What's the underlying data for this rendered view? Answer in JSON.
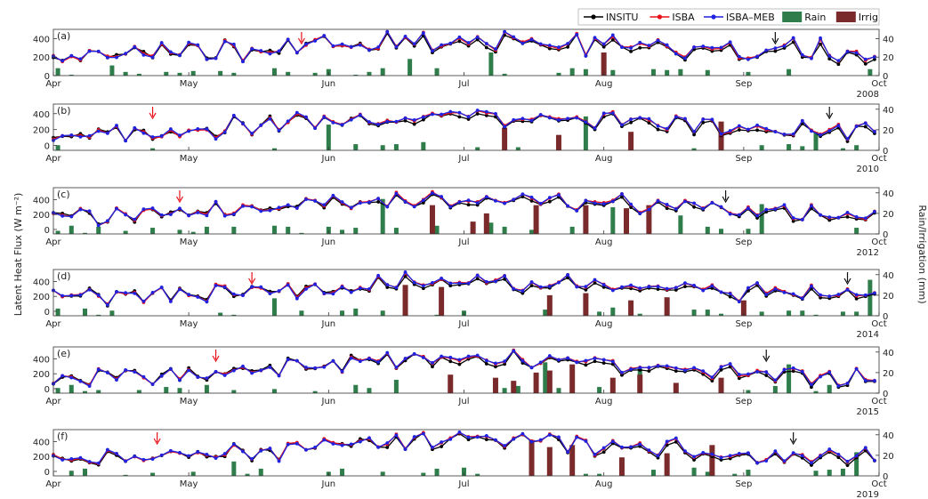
{
  "figure": {
    "ylabel_left": "Latent Heat Flux (W m⁻²)",
    "ylabel_right": "Rain/Irrigation (mm)"
  },
  "legend": [
    {
      "label": "INSITU",
      "kind": "line",
      "color": "#000000"
    },
    {
      "label": "ISBA",
      "kind": "line",
      "color": "#e8111a"
    },
    {
      "label": "ISBA–MEB",
      "kind": "line",
      "color": "#1f22e0"
    },
    {
      "label": "Rain",
      "kind": "bar",
      "color": "#2e7d4a"
    },
    {
      "label": "Irrig",
      "kind": "bar",
      "color": "#7a2a2a"
    }
  ],
  "chart_data": [
    {
      "type": "line",
      "panel": "(a)",
      "year": "2008",
      "seed": 11,
      "base": 220,
      "summer": 140,
      "ylim": [
        0,
        500
      ],
      "yticks": [
        0,
        200,
        400
      ],
      "rain_ylim": [
        0,
        50
      ],
      "rain_yticks": [
        0,
        20,
        40
      ],
      "months": [
        "Apr",
        "May",
        "Jun",
        "Jul",
        "Aug",
        "Sep",
        "Oct"
      ],
      "red_arrow_day": 55,
      "black_arrow_day": 160,
      "irrig_days": [
        122
      ],
      "irrig_values": [
        25
      ]
    },
    {
      "type": "line",
      "panel": "(b)",
      "year": "2010",
      "seed": 22,
      "base": 170,
      "summer": 170,
      "ylim": [
        -60,
        520
      ],
      "yticks": [
        0,
        200,
        400
      ],
      "rain_ylim": [
        0,
        45
      ],
      "rain_yticks": [
        0,
        20,
        40
      ],
      "months": [
        "Apr",
        "May",
        "Jun",
        "Jul",
        "Aug",
        "Sep",
        "Oct"
      ],
      "red_arrow_day": 22,
      "black_arrow_day": 172,
      "irrig_days": [
        100,
        112,
        128,
        148
      ],
      "irrig_values": [
        22,
        15,
        18,
        28
      ]
    },
    {
      "type": "line",
      "panel": "(c)",
      "year": "2012",
      "seed": 33,
      "base": 170,
      "summer": 220,
      "ylim": [
        -60,
        560
      ],
      "yticks": [
        0,
        200,
        400
      ],
      "rain_ylim": [
        0,
        45
      ],
      "rain_yticks": [
        0,
        20,
        40
      ],
      "months": [
        "Apr",
        "May",
        "Jun",
        "Jul",
        "Aug",
        "Sep",
        "Oct"
      ],
      "red_arrow_day": 28,
      "black_arrow_day": 149,
      "irrig_days": [
        84,
        93,
        96,
        107,
        118,
        127,
        132
      ],
      "irrig_values": [
        28,
        12,
        20,
        28,
        28,
        25,
        28
      ]
    },
    {
      "type": "line",
      "panel": "(d)",
      "year": "2014",
      "seed": 44,
      "base": 200,
      "summer": 150,
      "ylim": [
        -60,
        560
      ],
      "yticks": [
        0,
        200,
        400
      ],
      "rain_ylim": [
        0,
        45
      ],
      "rain_yticks": [
        0,
        20,
        40
      ],
      "months": [
        "Apr",
        "May",
        "Jun",
        "Jul",
        "Aug",
        "Sep",
        "Oct"
      ],
      "red_arrow_day": 44,
      "black_arrow_day": 176,
      "irrig_days": [
        78,
        86,
        110,
        118,
        128,
        136,
        153
      ],
      "irrig_values": [
        30,
        28,
        20,
        22,
        15,
        18,
        15
      ]
    },
    {
      "type": "line",
      "panel": "(e)",
      "year": "2015",
      "seed": 55,
      "base": 130,
      "summer": 260,
      "ylim": [
        -60,
        560
      ],
      "yticks": [
        0,
        200,
        400
      ],
      "rain_ylim": [
        0,
        45
      ],
      "rain_yticks": [
        0,
        20,
        40
      ],
      "months": [
        "Apr",
        "May",
        "Jun",
        "Jul",
        "Aug",
        "Sep",
        "Oct"
      ],
      "red_arrow_day": 36,
      "black_arrow_day": 158,
      "irrig_days": [
        88,
        98,
        102,
        107,
        110,
        115,
        124,
        130,
        138,
        148
      ],
      "irrig_values": [
        18,
        15,
        12,
        20,
        22,
        28,
        15,
        18,
        10,
        15
      ]
    },
    {
      "type": "line",
      "panel": "(f)",
      "year": "2019",
      "seed": 66,
      "base": 150,
      "summer": 240,
      "ylim": [
        -60,
        560
      ],
      "yticks": [
        0,
        200,
        400
      ],
      "rain_ylim": [
        0,
        45
      ],
      "rain_yticks": [
        0,
        20,
        40
      ],
      "months": [
        "Apr",
        "May",
        "Jun",
        "Jul",
        "Aug",
        "Sep",
        "Oct"
      ],
      "red_arrow_day": 23,
      "black_arrow_day": 164,
      "irrig_days": [
        106,
        110,
        115,
        126,
        136,
        146
      ],
      "irrig_values": [
        35,
        28,
        30,
        18,
        22,
        30
      ],
      "year_below": true
    }
  ]
}
